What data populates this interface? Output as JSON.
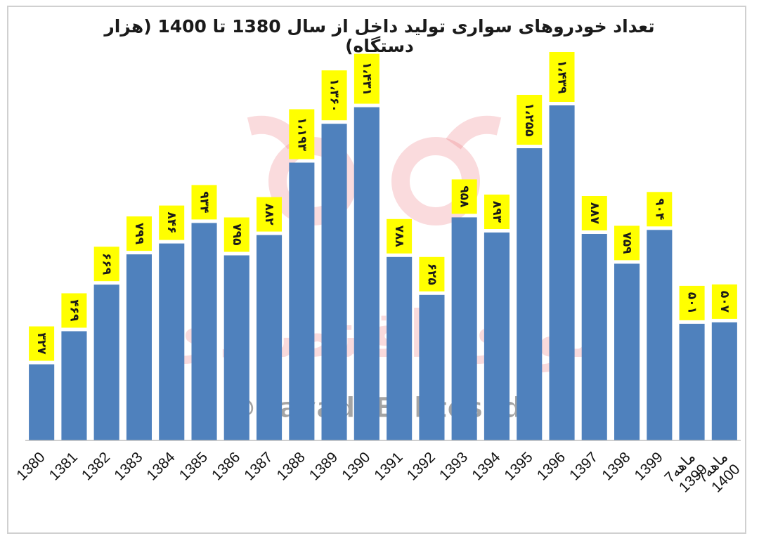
{
  "chart_data": {
    "type": "bar",
    "title": "تعداد خودروهای سواری تولید داخل از سال 1380 تا 1400 (هزار دستگاه)",
    "categories": [
      "1380",
      "1381",
      "1382",
      "1383",
      "1384",
      "1385",
      "1386",
      "1387",
      "1388",
      "1389",
      "1390",
      "1391",
      "1392",
      "1393",
      "1394",
      "1395",
      "1396",
      "1397",
      "1398",
      "1399",
      "1399‎7ماهه",
      "1400‎7ماهه"
    ],
    "category_lines": [
      [
        "1380"
      ],
      [
        "1381"
      ],
      [
        "1382"
      ],
      [
        "1383"
      ],
      [
        "1384"
      ],
      [
        "1385"
      ],
      [
        "1386"
      ],
      [
        "1387"
      ],
      [
        "1388"
      ],
      [
        "1389"
      ],
      [
        "1390"
      ],
      [
        "1391"
      ],
      [
        "1392"
      ],
      [
        "1393"
      ],
      [
        "1394"
      ],
      [
        "1395"
      ],
      [
        "1396"
      ],
      [
        "1397"
      ],
      [
        "1398"
      ],
      [
        "1399"
      ],
      [
        "7ماهه",
        "1399"
      ],
      [
        "7ماهه",
        "1400"
      ]
    ],
    "series": [
      {
        "values": [
          327,
          469,
          669,
          799,
          846,
          934,
          795,
          882,
          1193,
          1360,
          1431,
          788,
          625,
          958,
          893,
          1255,
          1439,
          887,
          759,
          904,
          501,
          507
        ],
        "value_labels": [
          "۳۲۷",
          "۴۶۹",
          "۶۶۹",
          "۷۹۹",
          "۸۴۶",
          "۹۳۴",
          "۷۹۵",
          "۸۸۲",
          "۱،۱۹۳",
          "۱،۳۶۰",
          "۱،۴۳۱",
          "۷۸۸",
          "۶۲۵",
          "۹۵۸",
          "۸۹۳",
          "۱،۲۵۵",
          "۱،۴۳۹",
          "۸۸۷",
          "۷۵۹",
          "۹۰۴",
          "۵۰۱",
          "۵۰۷"
        ]
      }
    ],
    "ylim": [
      0,
      1620
    ],
    "grid": false,
    "legend": "none",
    "bar_color": "#4f81bd",
    "label_bg_color": "#ffff00",
    "label_text_color": "#1a1a1a"
  },
  "watermark": {
    "name": "نوای اقتصادی",
    "handle": "@NavadeEghtesadi",
    "color": "#e75b64"
  }
}
